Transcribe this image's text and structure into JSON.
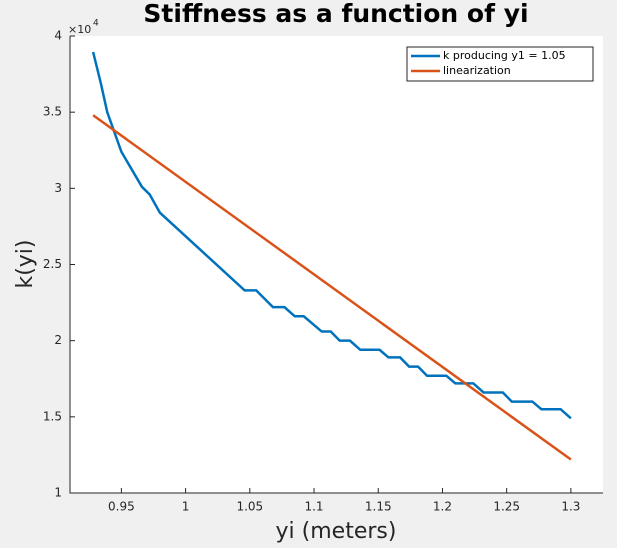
{
  "chart_data": {
    "type": "line",
    "title": "Stiffness as a function of yi",
    "x_label": "yi (meters)",
    "y_label": "k(yi)",
    "y_multiplier": {
      "base": "×10",
      "exponent": "4"
    },
    "xlim": [
      0.91,
      1.325
    ],
    "ylim": [
      1,
      4
    ],
    "xticks": [
      0.95,
      1,
      1.05,
      1.1,
      1.15,
      1.2,
      1.25,
      1.3
    ],
    "yticks": [
      1,
      1.5,
      2,
      2.5,
      3,
      3.5,
      4
    ],
    "legend": "northeast",
    "series": [
      {
        "name": "k producing y1 = 1.05",
        "color": "#0072bd",
        "x": [
          0.928,
          0.934,
          0.939,
          0.95,
          0.966,
          0.972,
          0.98,
          1.046,
          1.055,
          1.068,
          1.077,
          1.085,
          1.092,
          1.106,
          1.113,
          1.12,
          1.128,
          1.136,
          1.151,
          1.158,
          1.167,
          1.174,
          1.181,
          1.188,
          1.203,
          1.21,
          1.224,
          1.232,
          1.247,
          1.254,
          1.27,
          1.277,
          1.292,
          1.3
        ],
        "values": [
          3.895,
          3.69,
          3.5,
          3.24,
          3.01,
          2.96,
          2.84,
          2.33,
          2.33,
          2.22,
          2.22,
          2.16,
          2.16,
          2.06,
          2.06,
          2.0,
          2.0,
          1.94,
          1.94,
          1.89,
          1.89,
          1.83,
          1.83,
          1.77,
          1.77,
          1.72,
          1.72,
          1.66,
          1.66,
          1.6,
          1.6,
          1.55,
          1.55,
          1.49
        ]
      },
      {
        "name": "linearization",
        "color": "#d95319",
        "x": [
          0.928,
          1.3
        ],
        "values": [
          3.48,
          1.22
        ]
      }
    ]
  }
}
